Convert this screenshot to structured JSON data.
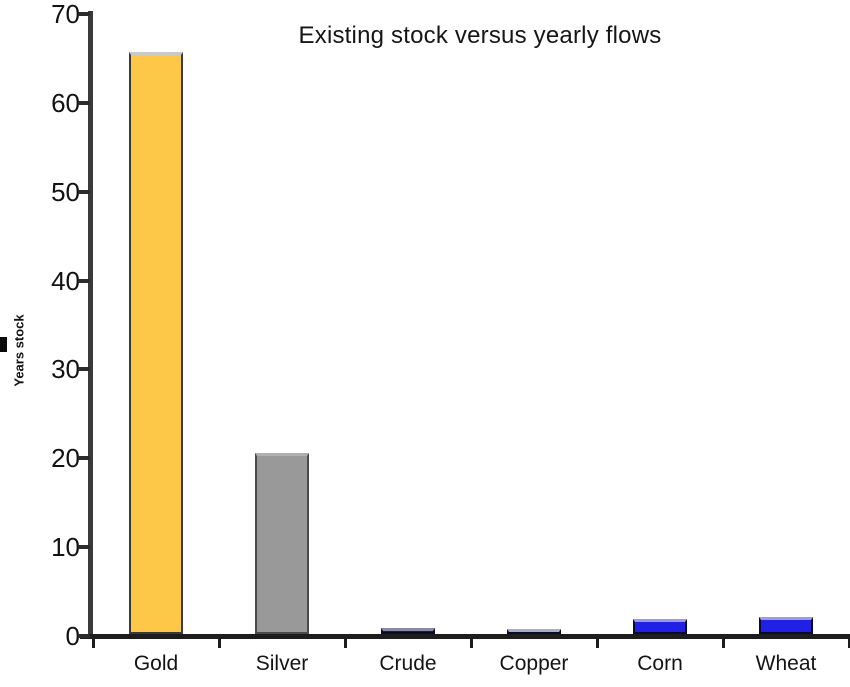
{
  "chart_data": {
    "type": "bar",
    "title": "Existing stock versus yearly flows",
    "ylabel": "Years stock",
    "xlabel": "",
    "categories": [
      "Gold",
      "Silver",
      "Crude",
      "Copper",
      "Corn",
      "Wheat"
    ],
    "values": [
      65.5,
      20.4,
      0.7,
      0.6,
      1.7,
      1.9
    ],
    "bar_colors": [
      "#FDC847",
      "#999999",
      "#1B1B4E",
      "#26268C",
      "#2121E6",
      "#2121E6"
    ],
    "bar_top_edge_colors": [
      "#C9C9C9",
      "#B0B0B0",
      "#8A8AA8",
      "#ABABC8",
      "#9A9AE8",
      "#9A9AE8"
    ],
    "bar_border_colors": [
      "#3A3A3A",
      "#4A4A4A",
      "#0A0A20",
      "#0A0A20",
      "#0A0A28",
      "#0A0A28"
    ],
    "ylim": [
      0,
      70
    ],
    "yticks": [
      0,
      10,
      20,
      30,
      40,
      50,
      60,
      70
    ],
    "grid": false,
    "legend_position": "none",
    "background": "#FFFFFF"
  }
}
